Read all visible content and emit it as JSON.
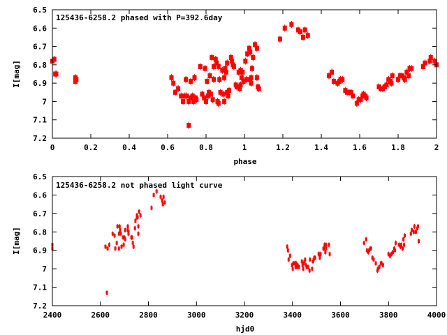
{
  "colors": {
    "points": "#ff0000",
    "axes": "#000000"
  },
  "chart_data": [
    {
      "type": "scatter",
      "title": "125436-6258.2 phased with P=392.6day",
      "xlabel": "phase",
      "ylabel": "I[mag]",
      "xlim": [
        0,
        2
      ],
      "ylim": [
        6.5,
        7.2
      ],
      "y_inverted": true,
      "grid": false,
      "xticks": [
        "0",
        "0.2",
        "0.4",
        "0.6",
        "0.8",
        "1",
        "1.2",
        "1.4",
        "1.6",
        "1.8",
        "2"
      ],
      "xtick_values": [
        0,
        0.2,
        0.4,
        0.6,
        0.8,
        1,
        1.2,
        1.4,
        1.6,
        1.8,
        2
      ],
      "yticks": [
        "6.5",
        "6.6",
        "6.7",
        "6.8",
        "6.9",
        "7",
        "7.1",
        "7.2"
      ],
      "ytick_values": [
        6.5,
        6.6,
        6.7,
        6.8,
        6.9,
        7,
        7.1,
        7.2
      ],
      "marker": "large",
      "points": [
        [
          0.0,
          6.78
        ],
        [
          0.01,
          6.77
        ],
        [
          0.02,
          6.85
        ],
        [
          0.015,
          6.85
        ],
        [
          0.12,
          6.87
        ],
        [
          0.12,
          6.89
        ],
        [
          0.125,
          6.88
        ],
        [
          0.62,
          6.87
        ],
        [
          0.63,
          6.9
        ],
        [
          0.64,
          6.95
        ],
        [
          0.655,
          6.93
        ],
        [
          0.67,
          6.97
        ],
        [
          0.68,
          7.0
        ],
        [
          0.69,
          6.97
        ],
        [
          0.695,
          6.88
        ],
        [
          0.7,
          6.97
        ],
        [
          0.71,
          7.0
        ],
        [
          0.71,
          7.13
        ],
        [
          0.72,
          6.89
        ],
        [
          0.72,
          6.98
        ],
        [
          0.73,
          6.97
        ],
        [
          0.735,
          7.0
        ],
        [
          0.74,
          6.87
        ],
        [
          0.745,
          6.98
        ],
        [
          0.75,
          6.99
        ],
        [
          0.77,
          6.81
        ],
        [
          0.78,
          6.96
        ],
        [
          0.79,
          6.98
        ],
        [
          0.795,
          6.82
        ],
        [
          0.8,
          7.0
        ],
        [
          0.805,
          6.89
        ],
        [
          0.81,
          6.97
        ],
        [
          0.815,
          6.95
        ],
        [
          0.82,
          6.86
        ],
        [
          0.825,
          6.96
        ],
        [
          0.83,
          6.76
        ],
        [
          0.835,
          6.99
        ],
        [
          0.84,
          6.88
        ],
        [
          0.84,
          6.81
        ],
        [
          0.85,
          6.77
        ],
        [
          0.855,
          6.79
        ],
        [
          0.86,
          7.0
        ],
        [
          0.865,
          7.01
        ],
        [
          0.865,
          6.81
        ],
        [
          0.87,
          6.88
        ],
        [
          0.875,
          6.95
        ],
        [
          0.885,
          6.83
        ],
        [
          0.89,
          6.96
        ],
        [
          0.895,
          6.87
        ],
        [
          0.895,
          7.0
        ],
        [
          0.9,
          6.82
        ],
        [
          0.905,
          6.84
        ],
        [
          0.91,
          6.95
        ],
        [
          0.91,
          6.79
        ],
        [
          0.915,
          6.97
        ],
        [
          0.92,
          6.94
        ],
        [
          0.93,
          6.76
        ],
        [
          0.935,
          6.78
        ],
        [
          0.94,
          6.8
        ],
        [
          0.945,
          6.81
        ],
        [
          0.955,
          6.91
        ],
        [
          0.96,
          6.92
        ],
        [
          0.97,
          6.84
        ],
        [
          0.975,
          6.93
        ],
        [
          0.98,
          6.83
        ],
        [
          0.98,
          6.91
        ],
        [
          0.985,
          6.87
        ],
        [
          0.99,
          6.84
        ],
        [
          0.995,
          6.89
        ],
        [
          1.005,
          6.78
        ],
        [
          1.01,
          6.88
        ],
        [
          1.015,
          6.74
        ],
        [
          1.025,
          6.71
        ],
        [
          1.03,
          6.73
        ],
        [
          1.03,
          6.88
        ],
        [
          1.035,
          6.87
        ],
        [
          1.035,
          6.9
        ],
        [
          1.04,
          6.82
        ],
        [
          1.045,
          6.76
        ],
        [
          1.055,
          6.69
        ],
        [
          1.065,
          6.71
        ],
        [
          1.065,
          6.87
        ],
        [
          1.07,
          6.92
        ],
        [
          1.075,
          6.93
        ],
        [
          1.185,
          6.66
        ],
        [
          1.21,
          6.6
        ],
        [
          1.245,
          6.58
        ],
        [
          1.28,
          6.61
        ],
        [
          1.29,
          6.62
        ],
        [
          1.305,
          6.65
        ],
        [
          1.315,
          6.61
        ],
        [
          1.33,
          6.64
        ],
        [
          1.44,
          6.86
        ],
        [
          1.455,
          6.84
        ],
        [
          1.465,
          6.89
        ],
        [
          1.485,
          6.9
        ],
        [
          1.495,
          6.89
        ],
        [
          1.5,
          6.88
        ],
        [
          1.51,
          6.88
        ],
        [
          1.525,
          6.94
        ],
        [
          1.535,
          6.95
        ],
        [
          1.545,
          6.95
        ],
        [
          1.555,
          6.95
        ],
        [
          1.565,
          6.97
        ],
        [
          1.585,
          7.01
        ],
        [
          1.595,
          6.99
        ],
        [
          1.605,
          6.99
        ],
        [
          1.615,
          6.97
        ],
        [
          1.62,
          6.96
        ],
        [
          1.63,
          6.97
        ],
        [
          1.635,
          6.98
        ],
        [
          1.7,
          6.92
        ],
        [
          1.71,
          6.93
        ],
        [
          1.72,
          6.93
        ],
        [
          1.73,
          6.92
        ],
        [
          1.74,
          6.91
        ],
        [
          1.75,
          6.88
        ],
        [
          1.76,
          6.89
        ],
        [
          1.765,
          6.9
        ],
        [
          1.77,
          6.86
        ],
        [
          1.8,
          6.88
        ],
        [
          1.81,
          6.86
        ],
        [
          1.82,
          6.86
        ],
        [
          1.83,
          6.87
        ],
        [
          1.835,
          6.88
        ],
        [
          1.845,
          6.84
        ],
        [
          1.855,
          6.86
        ],
        [
          1.86,
          6.82
        ],
        [
          1.87,
          6.82
        ],
        [
          1.93,
          6.81
        ],
        [
          1.94,
          6.79
        ],
        [
          1.965,
          6.78
        ],
        [
          1.97,
          6.76
        ],
        [
          1.99,
          6.78
        ],
        [
          2.0,
          6.8
        ]
      ]
    },
    {
      "type": "scatter",
      "title": "125436-6258.2 not phased light curve",
      "xlabel": "hjd0",
      "ylabel": "I[mag]",
      "xlim": [
        2400,
        4000
      ],
      "ylim": [
        6.5,
        7.2
      ],
      "y_inverted": true,
      "grid": false,
      "xticks": [
        "2400",
        "2600",
        "2800",
        "3000",
        "3200",
        "3400",
        "3600",
        "3800",
        "4000"
      ],
      "xtick_values": [
        2400,
        2600,
        2800,
        3000,
        3200,
        3400,
        3600,
        3800,
        4000
      ],
      "yticks": [
        "6.5",
        "6.6",
        "6.7",
        "6.8",
        "6.9",
        "7",
        "7.1",
        "7.2"
      ],
      "ytick_values": [
        6.5,
        6.6,
        6.7,
        6.8,
        6.9,
        7,
        7.1,
        7.2
      ],
      "marker": "small",
      "points": [
        [
          2400,
          6.87
        ],
        [
          2400,
          6.89
        ],
        [
          2621,
          6.88
        ],
        [
          2630,
          6.89
        ],
        [
          2637,
          6.87
        ],
        [
          2627,
          7.13
        ],
        [
          2651,
          6.81
        ],
        [
          2659,
          6.82
        ],
        [
          2662,
          6.89
        ],
        [
          2668,
          6.86
        ],
        [
          2671,
          6.77
        ],
        [
          2677,
          6.89
        ],
        [
          2677,
          6.81
        ],
        [
          2680,
          6.77
        ],
        [
          2682,
          6.79
        ],
        [
          2685,
          6.81
        ],
        [
          2688,
          6.88
        ],
        [
          2694,
          6.83
        ],
        [
          2697,
          6.87
        ],
        [
          2700,
          6.83
        ],
        [
          2703,
          6.79
        ],
        [
          2703,
          6.84
        ],
        [
          2714,
          6.77
        ],
        [
          2714,
          6.79
        ],
        [
          2717,
          6.8
        ],
        [
          2717,
          6.81
        ],
        [
          2729,
          6.83
        ],
        [
          2732,
          6.83
        ],
        [
          2735,
          6.86
        ],
        [
          2738,
          6.88
        ],
        [
          2744,
          6.78
        ],
        [
          2746,
          6.74
        ],
        [
          2752,
          6.72
        ],
        [
          2752,
          6.71
        ],
        [
          2755,
          6.72
        ],
        [
          2758,
          6.77
        ],
        [
          2758,
          6.81
        ],
        [
          2761,
          6.69
        ],
        [
          2767,
          6.71
        ],
        [
          2813,
          6.67
        ],
        [
          2822,
          6.6
        ],
        [
          2834,
          6.58
        ],
        [
          2851,
          6.61
        ],
        [
          2857,
          6.63
        ],
        [
          2860,
          6.65
        ],
        [
          2863,
          6.61
        ],
        [
          2868,
          6.64
        ],
        [
          3378,
          6.88
        ],
        [
          3381,
          6.9
        ],
        [
          3384,
          6.95
        ],
        [
          3390,
          6.93
        ],
        [
          3398,
          6.98
        ],
        [
          3401,
          7.0
        ],
        [
          3404,
          6.97
        ],
        [
          3410,
          6.97
        ],
        [
          3413,
          6.99
        ],
        [
          3415,
          6.97
        ],
        [
          3418,
          6.99
        ],
        [
          3421,
          6.98
        ],
        [
          3427,
          6.99
        ],
        [
          3439,
          6.96
        ],
        [
          3442,
          6.98
        ],
        [
          3445,
          7.0
        ],
        [
          3447,
          6.97
        ],
        [
          3450,
          6.96
        ],
        [
          3453,
          6.95
        ],
        [
          3456,
          6.98
        ],
        [
          3459,
          6.99
        ],
        [
          3465,
          6.99
        ],
        [
          3471,
          7.01
        ],
        [
          3473,
          6.95
        ],
        [
          3482,
          7.0
        ],
        [
          3485,
          6.96
        ],
        [
          3488,
          6.95
        ],
        [
          3491,
          6.94
        ],
        [
          3494,
          6.94
        ],
        [
          3509,
          6.92
        ],
        [
          3511,
          6.92
        ],
        [
          3514,
          6.94
        ],
        [
          3517,
          6.92
        ],
        [
          3529,
          6.89
        ],
        [
          3531,
          6.89
        ],
        [
          3534,
          6.87
        ],
        [
          3537,
          6.91
        ],
        [
          3540,
          6.87
        ],
        [
          3540,
          6.89
        ],
        [
          3552,
          6.87
        ],
        [
          3555,
          6.92
        ],
        [
          3698,
          6.86
        ],
        [
          3707,
          6.84
        ],
        [
          3710,
          6.9
        ],
        [
          3716,
          6.91
        ],
        [
          3719,
          6.9
        ],
        [
          3724,
          6.89
        ],
        [
          3727,
          6.89
        ],
        [
          3733,
          6.94
        ],
        [
          3738,
          6.95
        ],
        [
          3747,
          6.97
        ],
        [
          3754,
          7.01
        ],
        [
          3756,
          7.0
        ],
        [
          3762,
          6.99
        ],
        [
          3768,
          6.97
        ],
        [
          3771,
          6.97
        ],
        [
          3777,
          6.98
        ],
        [
          3800,
          6.92
        ],
        [
          3806,
          6.93
        ],
        [
          3812,
          6.92
        ],
        [
          3818,
          6.91
        ],
        [
          3824,
          6.89
        ],
        [
          3827,
          6.9
        ],
        [
          3830,
          6.86
        ],
        [
          3844,
          6.87
        ],
        [
          3850,
          6.88
        ],
        [
          3853,
          6.87
        ],
        [
          3859,
          6.89
        ],
        [
          3862,
          6.84
        ],
        [
          3865,
          6.87
        ],
        [
          3868,
          6.82
        ],
        [
          3893,
          6.81
        ],
        [
          3897,
          6.79
        ],
        [
          3905,
          6.8
        ],
        [
          3908,
          6.77
        ],
        [
          3914,
          6.8
        ],
        [
          3920,
          6.78
        ],
        [
          3923,
          6.77
        ],
        [
          3926,
          6.85
        ]
      ]
    }
  ]
}
